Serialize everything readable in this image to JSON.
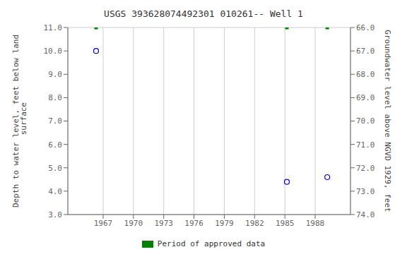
{
  "chart_data": {
    "type": "scatter",
    "title": "USGS 393628074492301 010261-- Well 1",
    "y_label": "Depth to water level, feet below land\n surface",
    "y2_label": "Groundwater level above NGVD 1929, feet",
    "series": [
      {
        "color": "#0000cc",
        "marker": "circle",
        "x": [
          1966.3,
          1985.2,
          1989.2
        ],
        "values": [
          10.0,
          4.4,
          4.6
        ]
      },
      {
        "name": "Period of approved data",
        "color": "#008000",
        "marker": "square",
        "x": [
          1966.3,
          1985.2,
          1989.2
        ],
        "values": [
          11.0,
          11.0,
          11.0
        ]
      }
    ],
    "xlim": [
      1963.5,
      1991.5
    ],
    "xticks": [
      1967,
      1970,
      1973,
      1976,
      1979,
      1982,
      1985,
      1988
    ],
    "ylim": [
      3.0,
      11.0
    ],
    "yticks": [
      {
        "value": 3.0,
        "label": "3.0"
      },
      {
        "value": 4.0,
        "label": "4.0"
      },
      {
        "value": 5.0,
        "label": "5.0"
      },
      {
        "value": 6.0,
        "label": "6.0"
      },
      {
        "value": 7.0,
        "label": "7.0"
      },
      {
        "value": 8.0,
        "label": "8.0"
      },
      {
        "value": 9.0,
        "label": "9.0"
      },
      {
        "value": 10.0,
        "label": "10.0"
      },
      {
        "value": 11.0,
        "label": "11.0"
      }
    ],
    "y2lim": [
      74.0,
      66.0
    ],
    "y2ticks": [
      {
        "value": 74.0,
        "label": "74.0"
      },
      {
        "value": 73.0,
        "label": "73.0"
      },
      {
        "value": 72.0,
        "label": "72.0"
      },
      {
        "value": 71.0,
        "label": "71.0"
      },
      {
        "value": 70.0,
        "label": "70.0"
      },
      {
        "value": 69.0,
        "label": "69.0"
      },
      {
        "value": 68.0,
        "label": "68.0"
      },
      {
        "value": 67.0,
        "label": "67.0"
      },
      {
        "value": 66.0,
        "label": "66.0"
      }
    ],
    "grid": true
  }
}
